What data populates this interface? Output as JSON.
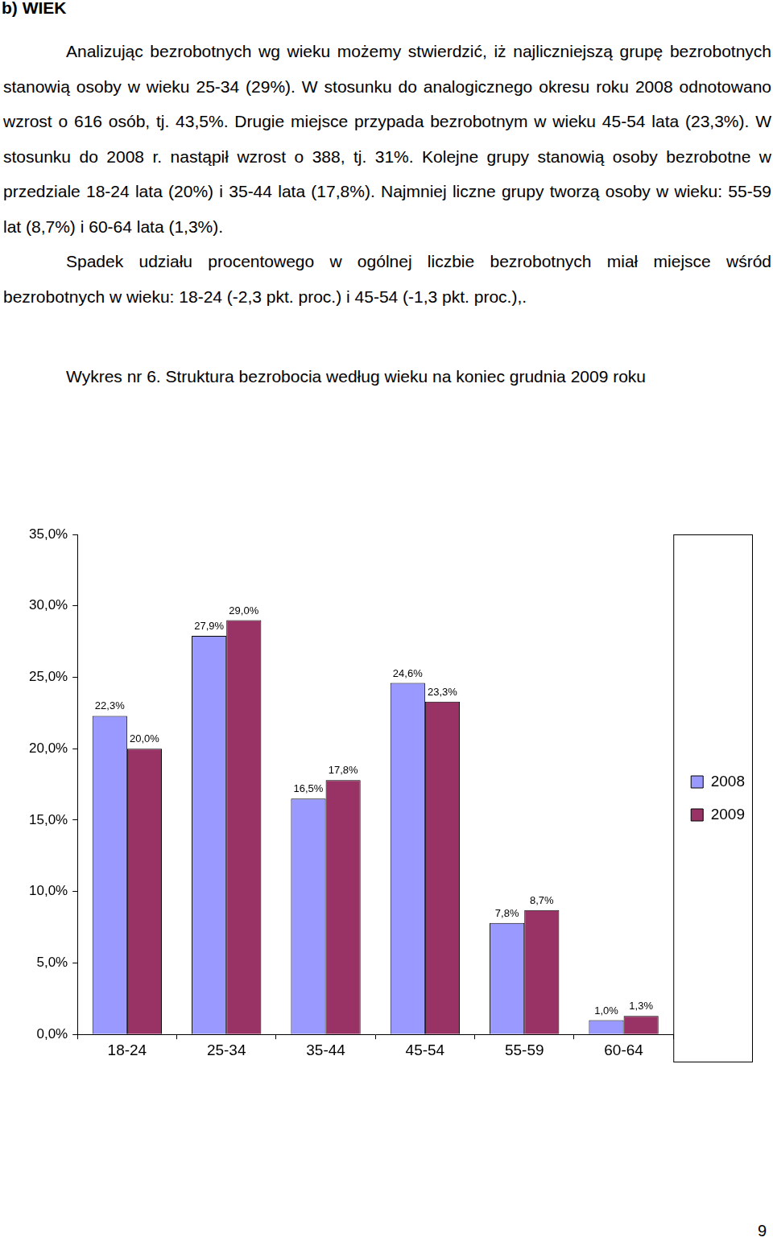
{
  "heading": "b) WIEK",
  "paragraphs": [
    "Analizując bezrobotnych wg wieku możemy stwierdzić, iż najliczniejszą grupę bezrobotnych stanowią osoby w wieku 25-34 (29%). W stosunku do analogicznego okresu roku 2008 odnotowano wzrost o 616 osób, tj. 43,5%. Drugie miejsce przypada bezrobotnym w wieku 45-54 lata (23,3%). W stosunku do 2008 r. nastąpił wzrost o 388, tj. 31%. Kolejne grupy stanowią osoby bezrobotne w przedziale 18-24 lata (20%) i 35-44 lata (17,8%). Najmniej liczne grupy tworzą osoby w wieku: 55-59 lat (8,7%) i 60-64 lata (1,3%).",
    "Spadek udziału procentowego w ogólnej liczbie bezrobotnych miał miejsce wśród bezrobotnych w wieku: 18-24 (-2,3 pkt. proc.) i 45-54 (-1,3 pkt. proc.),."
  ],
  "caption": "Wykres nr 6. Struktura bezrobocia według wieku na koniec grudnia 2009 roku",
  "page_number": "9",
  "chart_data": {
    "type": "bar",
    "categories": [
      "18-24",
      "25-34",
      "35-44",
      "45-54",
      "55-59",
      "60-64"
    ],
    "series": [
      {
        "name": "2008",
        "color": "#9999ff",
        "values": [
          22.3,
          27.9,
          16.5,
          24.6,
          7.8,
          1.0
        ],
        "value_labels": [
          "22,3%",
          "27,9%",
          "16,5%",
          "24,6%",
          "7,8%",
          "1,0%"
        ]
      },
      {
        "name": "2009",
        "color": "#993366",
        "values": [
          20.0,
          29.0,
          17.8,
          23.3,
          8.7,
          1.3
        ],
        "value_labels": [
          "20,0%",
          "29,0%",
          "17,8%",
          "23,3%",
          "8,7%",
          "1,3%"
        ]
      }
    ],
    "ylim": [
      0,
      35
    ],
    "yticks": [
      {
        "value": 0,
        "label": "0,0%"
      },
      {
        "value": 5,
        "label": "5,0%"
      },
      {
        "value": 10,
        "label": "10,0%"
      },
      {
        "value": 15,
        "label": "15,0%"
      },
      {
        "value": 20,
        "label": "20,0%"
      },
      {
        "value": 25,
        "label": "25,0%"
      },
      {
        "value": 30,
        "label": "30,0%"
      },
      {
        "value": 35,
        "label": "35,0%"
      }
    ],
    "grid": false,
    "legend": "right",
    "data_labels": true
  }
}
